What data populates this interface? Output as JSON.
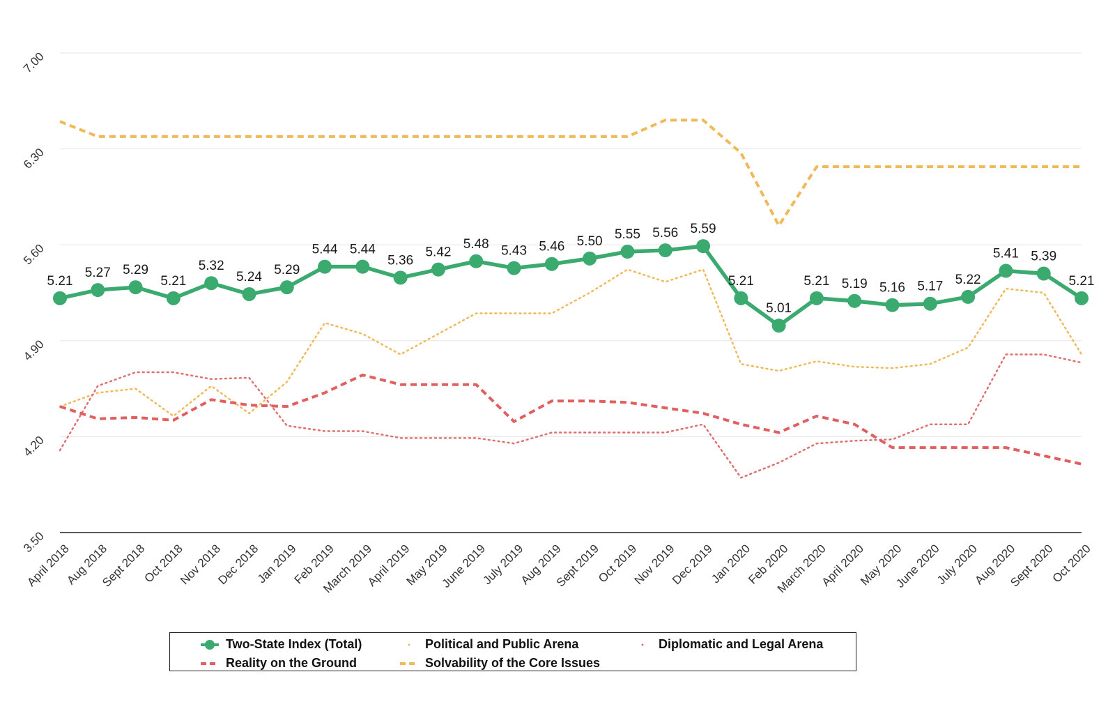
{
  "chart_data": {
    "type": "line",
    "title": "",
    "xlabel": "",
    "ylabel": "",
    "ylim": [
      3.5,
      7.0
    ],
    "yticks": [
      "3.50",
      "4.20",
      "4.90",
      "5.60",
      "6.30",
      "7.00"
    ],
    "categories": [
      "April 2018",
      "Aug 2018",
      "Sept 2018",
      "Oct 2018",
      "Nov 2018",
      "Dec 2018",
      "Jan 2019",
      "Feb 2019",
      "March 2019",
      "April 2019",
      "May 2019",
      "June 2019",
      "July 2019",
      "Aug 2019",
      "Sept 2019",
      "Oct 2019",
      "Nov 2019",
      "Dec 2019",
      "Jan 2020",
      "Feb 2020",
      "March 2020",
      "April 2020",
      "May 2020",
      "June 2020",
      "July 2020",
      "Aug 2020",
      "Sept 2020",
      "Oct 2020"
    ],
    "series": [
      {
        "name": "Two-State Index (Total)",
        "color": "#3aaa6e",
        "style": "solid-markers",
        "values": [
          5.21,
          5.27,
          5.29,
          5.21,
          5.32,
          5.24,
          5.29,
          5.44,
          5.44,
          5.36,
          5.42,
          5.48,
          5.43,
          5.46,
          5.5,
          5.55,
          5.56,
          5.59,
          5.21,
          5.01,
          5.21,
          5.19,
          5.16,
          5.17,
          5.22,
          5.41,
          5.39,
          5.21
        ],
        "labels": [
          "5.21",
          "5.27",
          "5.29",
          "5.21",
          "5.32",
          "5.24",
          "5.29",
          "5.44",
          "5.44",
          "5.36",
          "5.42",
          "5.48",
          "5.43",
          "5.46",
          "5.50",
          "5.55",
          "5.56",
          "5.59",
          "5.21",
          "5.01",
          "5.21",
          "5.19",
          "5.16",
          "5.17",
          "5.22",
          "5.41",
          "5.39",
          "5.21"
        ]
      },
      {
        "name": "Political and Public Arena",
        "color": "#f0b95a",
        "style": "dotted",
        "values": [
          4.42,
          4.52,
          4.55,
          4.35,
          4.57,
          4.37,
          4.6,
          5.03,
          4.95,
          4.8,
          4.95,
          5.1,
          5.1,
          5.1,
          5.25,
          5.42,
          5.33,
          5.42,
          4.73,
          4.68,
          4.75,
          4.71,
          4.7,
          4.73,
          4.85,
          5.28,
          5.25,
          4.8
        ]
      },
      {
        "name": "Diplomatic and Legal Arena",
        "color": "#e07070",
        "style": "dotted",
        "values": [
          4.1,
          4.57,
          4.67,
          4.67,
          4.62,
          4.63,
          4.28,
          4.24,
          4.24,
          4.19,
          4.19,
          4.19,
          4.15,
          4.23,
          4.23,
          4.23,
          4.23,
          4.29,
          3.9,
          4.01,
          4.15,
          4.17,
          4.18,
          4.29,
          4.29,
          4.8,
          4.8,
          4.74
        ]
      },
      {
        "name": "Reality on the Ground",
        "color": "#e06060",
        "style": "dashed",
        "values": [
          4.42,
          4.33,
          4.34,
          4.32,
          4.47,
          4.43,
          4.42,
          4.52,
          4.65,
          4.58,
          4.58,
          4.58,
          4.31,
          4.46,
          4.46,
          4.45,
          4.41,
          4.37,
          4.29,
          4.23,
          4.35,
          4.29,
          4.12,
          4.12,
          4.12,
          4.12,
          4.06,
          4.0
        ]
      },
      {
        "name": "Solvability of the Core Issues",
        "color": "#f0b95a",
        "style": "dashed",
        "values": [
          6.5,
          6.39,
          6.39,
          6.39,
          6.39,
          6.39,
          6.39,
          6.39,
          6.39,
          6.39,
          6.39,
          6.39,
          6.39,
          6.39,
          6.39,
          6.39,
          6.51,
          6.51,
          6.27,
          5.74,
          6.17,
          6.17,
          6.17,
          6.17,
          6.17,
          6.17,
          6.17,
          6.17
        ]
      }
    ],
    "legend": "bottom"
  }
}
